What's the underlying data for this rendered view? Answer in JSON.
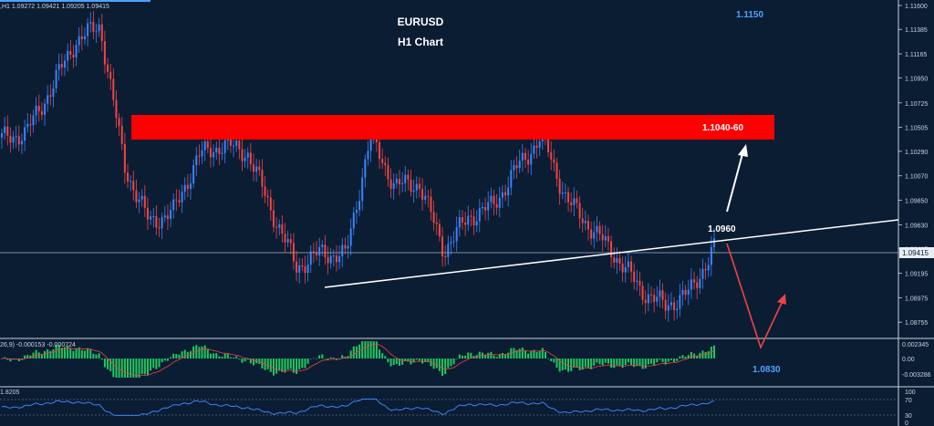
{
  "chart_data": {
    "type": "candlestick",
    "symbol": "EURUSD",
    "timeframe": "H1",
    "title": "EURUSD",
    "subtitle": "H1 Chart",
    "ohlc_header": ",H1  1.09272 1.09421 1.09205 1.09415",
    "y_range": [
      1.0865,
      1.116
    ],
    "current_price": "1.09415",
    "price_ticks": [
      "1.11600",
      "1.11385",
      "1.11165",
      "1.10950",
      "1.10725",
      "1.10505",
      "1.10290",
      "1.10070",
      "1.09850",
      "1.09630",
      "1.09415",
      "1.09195",
      "1.08975",
      "1.08755"
    ],
    "key_closes": [
      1.104,
      1.1046,
      1.1085,
      1.1128,
      1.1142,
      1.1015,
      1.0965,
      1.0975,
      1.1025,
      1.1035,
      1.1028,
      1.0975,
      1.0925,
      1.0938,
      1.0935,
      1.1042,
      1.0998,
      1.1,
      1.094,
      1.097,
      1.098,
      1.1015,
      1.1043,
      1.0985,
      1.096,
      1.0935,
      1.0905,
      1.089,
      1.0902,
      1.0942
    ],
    "zone": {
      "label": "1.1040-60",
      "low": 1.104,
      "high": 1.106
    },
    "trendline_label": "1.0960",
    "target_labels": {
      "upper": "1.1150",
      "lower": "1.0830"
    },
    "macd": {
      "header": "26,9) -0.000153 -0.000724",
      "ticks": [
        "0.002345",
        "0.00",
        "-0.003286"
      ]
    },
    "rsi": {
      "header": "1.8205",
      "ticks": [
        "100",
        "70",
        "30",
        "0"
      ]
    }
  },
  "colors": {
    "background": "#0b1d33",
    "bull": "#3b82f6",
    "bear": "#ef4444",
    "zone": "#ff0000",
    "macd_hist": "#22c55e",
    "label_blue": "#4da3ff",
    "white": "#ffffff"
  }
}
